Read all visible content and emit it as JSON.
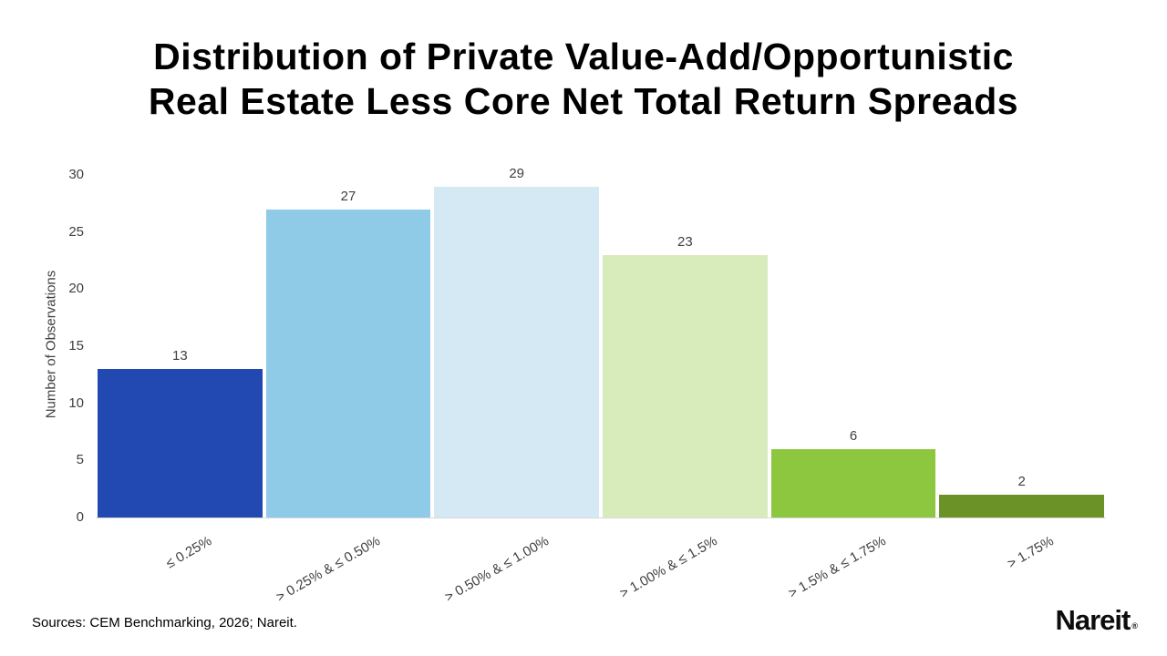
{
  "chart_data": {
    "type": "bar",
    "title": "Distribution of Private Value-Add/Opportunistic Real Estate Less Core Net Total Return Spreads",
    "title_lines": [
      "Distribution of Private Value-Add/Opportunistic",
      "Real Estate Less Core Net Total Return Spreads"
    ],
    "categories": [
      "≤ 0.25%",
      "> 0.25% & ≤ 0.50%",
      "> 0.50% & ≤ 1.00%",
      "> 1.00% & ≤ 1.5%",
      "> 1.5% & ≤ 1.75%",
      "> 1.75%"
    ],
    "values": [
      13,
      27,
      29,
      23,
      6,
      2
    ],
    "bar_colors": [
      "#2149B1",
      "#8FCAE7",
      "#D5E9F5",
      "#D7EBBB",
      "#8DC63F",
      "#6B9227"
    ],
    "xlabel": "",
    "ylabel": "Number of Observations",
    "ylim": [
      0,
      30
    ],
    "yticks": [
      0,
      5,
      10,
      15,
      20,
      25,
      30
    ],
    "grid": false,
    "legend": "none",
    "value_labels_shown": true,
    "text_color": "#404040"
  },
  "footer": {
    "sources": "Sources: CEM Benchmarking, 2026; Nareit.",
    "logo_text": "Nareit",
    "logo_reg": "®"
  }
}
